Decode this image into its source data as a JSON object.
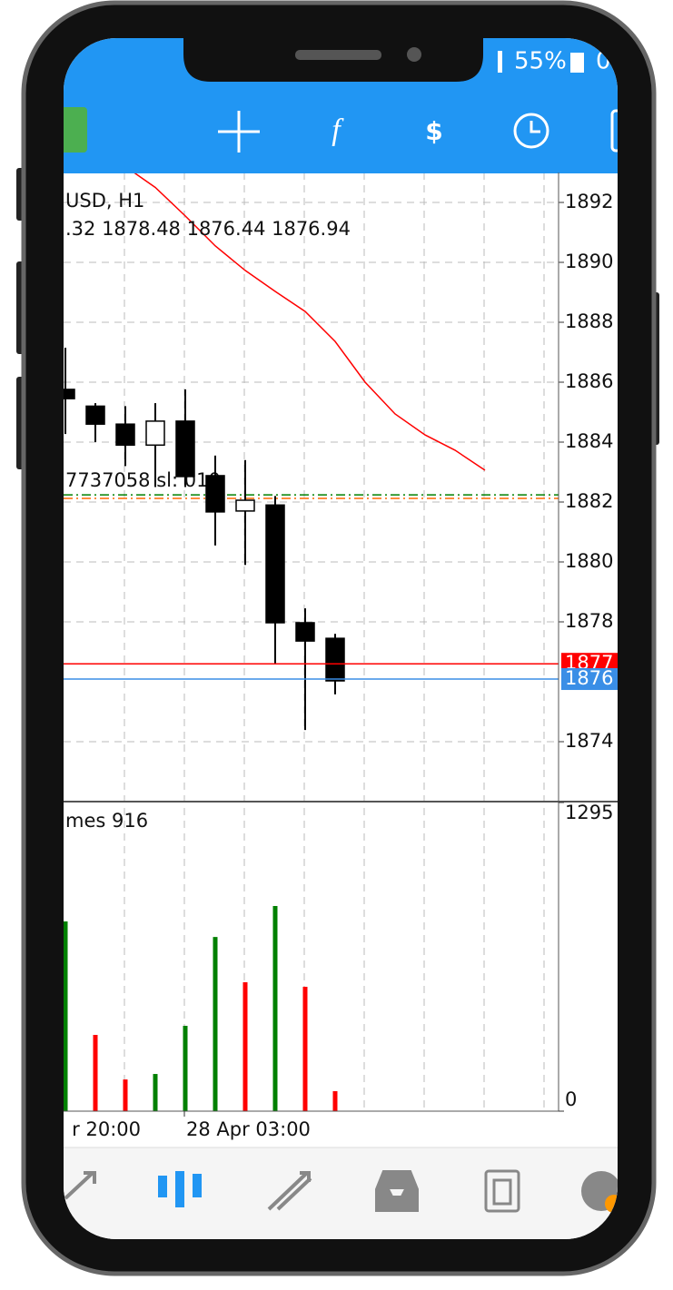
{
  "status_bar": {
    "battery": "55%",
    "partial": "0"
  },
  "chart": {
    "symbol": "USD, H1",
    "ohlc_text": ".32 1878.48 1876.44 1876.94",
    "trade_label": "7737058 sl: 010",
    "price_range": [
      1872,
      1893
    ],
    "price_ticks": [
      1892,
      1890,
      1888,
      1886,
      1884,
      1882,
      1880,
      1878,
      1874
    ],
    "candles": [
      {
        "open": 1885.76,
        "high": 1887.15,
        "low": 1884.27,
        "close": 1885.45
      },
      {
        "open": 1885.2,
        "high": 1885.3,
        "low": 1884.0,
        "close": 1884.6
      },
      {
        "open": 1884.6,
        "high": 1885.2,
        "low": 1883.2,
        "close": 1883.9
      },
      {
        "open": 1883.9,
        "high": 1885.3,
        "low": 1882.5,
        "close": 1884.7
      },
      {
        "open": 1884.7,
        "high": 1885.76,
        "low": 1882.5,
        "close": 1882.85
      },
      {
        "open": 1882.88,
        "high": 1883.55,
        "low": 1880.55,
        "close": 1881.67
      },
      {
        "open": 1881.7,
        "high": 1883.4,
        "low": 1879.9,
        "close": 1882.06
      },
      {
        "open": 1881.9,
        "high": 1882.2,
        "low": 1876.58,
        "close": 1877.97
      },
      {
        "open": 1877.97,
        "high": 1878.45,
        "low": 1874.39,
        "close": 1877.36
      },
      {
        "open": 1877.45,
        "high": 1877.6,
        "low": 1875.58,
        "close": 1876.03
      }
    ],
    "ma": [
      null,
      null,
      1893.2,
      1892.5,
      1891.55,
      1890.55,
      1889.73,
      1889.03,
      1888.36,
      1887.36,
      1886.0,
      1884.94,
      1884.24,
      1883.73,
      1883.06
    ],
    "ma_color": "#ff0000",
    "order_lines": [
      {
        "value": 1882.24,
        "color": "#008000"
      },
      {
        "value": 1882.12,
        "color": "#ff6600"
      }
    ],
    "bid": {
      "value": 1876.6,
      "label": "1877",
      "color": "#ff0000"
    },
    "ask": {
      "value": 1876.09,
      "label": "1876",
      "color": "#3a8ee6"
    },
    "volume_label": "mes 916",
    "volume_ticks": [
      0,
      1295
    ],
    "volumes": [
      796,
      320,
      133,
      156,
      358,
      731,
      541,
      861,
      522,
      84
    ],
    "volume_colors": [
      "#008000",
      "#ff0000",
      "#ff0000",
      "#008000",
      "#008000",
      "#008000",
      "#ff0000",
      "#008000",
      "#ff0000",
      "#ff0000"
    ],
    "time_labels": [
      "r 20:00",
      "28 Apr 03:00"
    ]
  }
}
